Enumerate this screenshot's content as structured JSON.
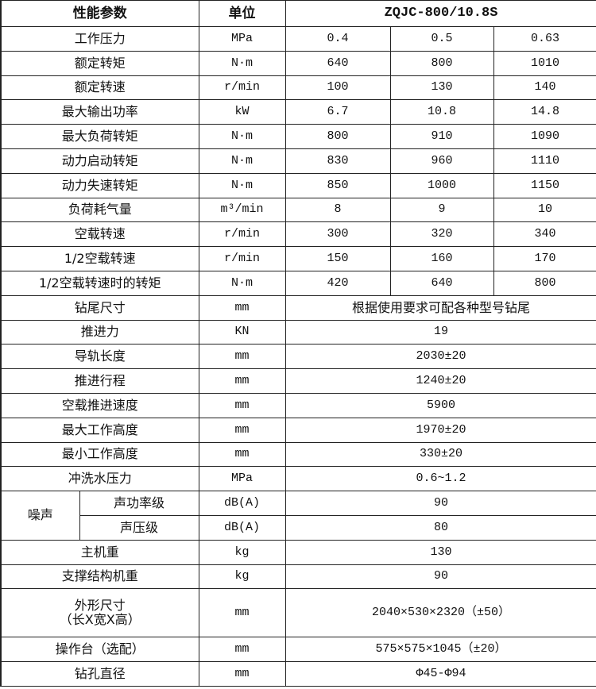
{
  "header": {
    "param": "性能参数",
    "unit": "单位",
    "model": "ZQJC-800/10.8S"
  },
  "rows3": [
    {
      "label": "工作压力",
      "unit": "MPa",
      "values": [
        "0.4",
        "0.5",
        "0.63"
      ]
    },
    {
      "label": "额定转矩",
      "unit": "N·m",
      "values": [
        "640",
        "800",
        "1010"
      ]
    },
    {
      "label": "额定转速",
      "unit": "r/min",
      "values": [
        "100",
        "130",
        "140"
      ]
    },
    {
      "label": "最大输出功率",
      "unit": "kW",
      "values": [
        "6.7",
        "10.8",
        "14.8"
      ]
    },
    {
      "label": "最大负荷转矩",
      "unit": "N·m",
      "values": [
        "800",
        "910",
        "1090"
      ]
    },
    {
      "label": "动力启动转矩",
      "unit": "N·m",
      "values": [
        "830",
        "960",
        "1110"
      ]
    },
    {
      "label": "动力失速转矩",
      "unit": "N·m",
      "values": [
        "850",
        "1000",
        "1150"
      ]
    },
    {
      "label": "负荷耗气量",
      "unit": "m³/min",
      "values": [
        "8",
        "9",
        "10"
      ]
    },
    {
      "label": "空载转速",
      "unit": "r/min",
      "values": [
        "300",
        "320",
        "340"
      ]
    },
    {
      "label": "1/2空载转速",
      "unit": "r/min",
      "values": [
        "150",
        "160",
        "170"
      ]
    },
    {
      "label": "1/2空载转速时的转矩",
      "unit": "N·m",
      "values": [
        "420",
        "640",
        "800"
      ]
    }
  ],
  "rows1a": [
    {
      "label": "钻尾尺寸",
      "unit": "mm",
      "value": "根据使用要求可配各种型号钻尾"
    },
    {
      "label": "推进力",
      "unit": "KN",
      "value": "19"
    },
    {
      "label": "导轨长度",
      "unit": "mm",
      "value": "2030±20"
    },
    {
      "label": "推进行程",
      "unit": "mm",
      "value": "1240±20"
    },
    {
      "label": "空载推进速度",
      "unit": "mm",
      "value": "5900"
    },
    {
      "label": "最大工作高度",
      "unit": "mm",
      "value": "1970±20"
    },
    {
      "label": "最小工作高度",
      "unit": "mm",
      "value": "330±20"
    },
    {
      "label": "冲洗水压力",
      "unit": "MPa",
      "value": "0.6~1.2"
    }
  ],
  "noise": {
    "label": "噪声",
    "items": [
      {
        "label": "声功率级",
        "unit": "dB(A)",
        "value": "90"
      },
      {
        "label": "声压级",
        "unit": "dB(A)",
        "value": "80"
      }
    ]
  },
  "rows1b": [
    {
      "label": "主机重",
      "unit": "kg",
      "value": "130"
    },
    {
      "label": "支撑结构机重",
      "unit": "kg",
      "value": "90"
    },
    {
      "label": "外形尺寸\n（长X宽X高）",
      "unit": "mm",
      "value": "2040×530×2320（±50）"
    },
    {
      "label": "操作台（选配）",
      "unit": "mm",
      "value": "575×575×1045（±20）"
    },
    {
      "label": "钻孔直径",
      "unit": "mm",
      "value": "Φ45-Φ94"
    }
  ]
}
